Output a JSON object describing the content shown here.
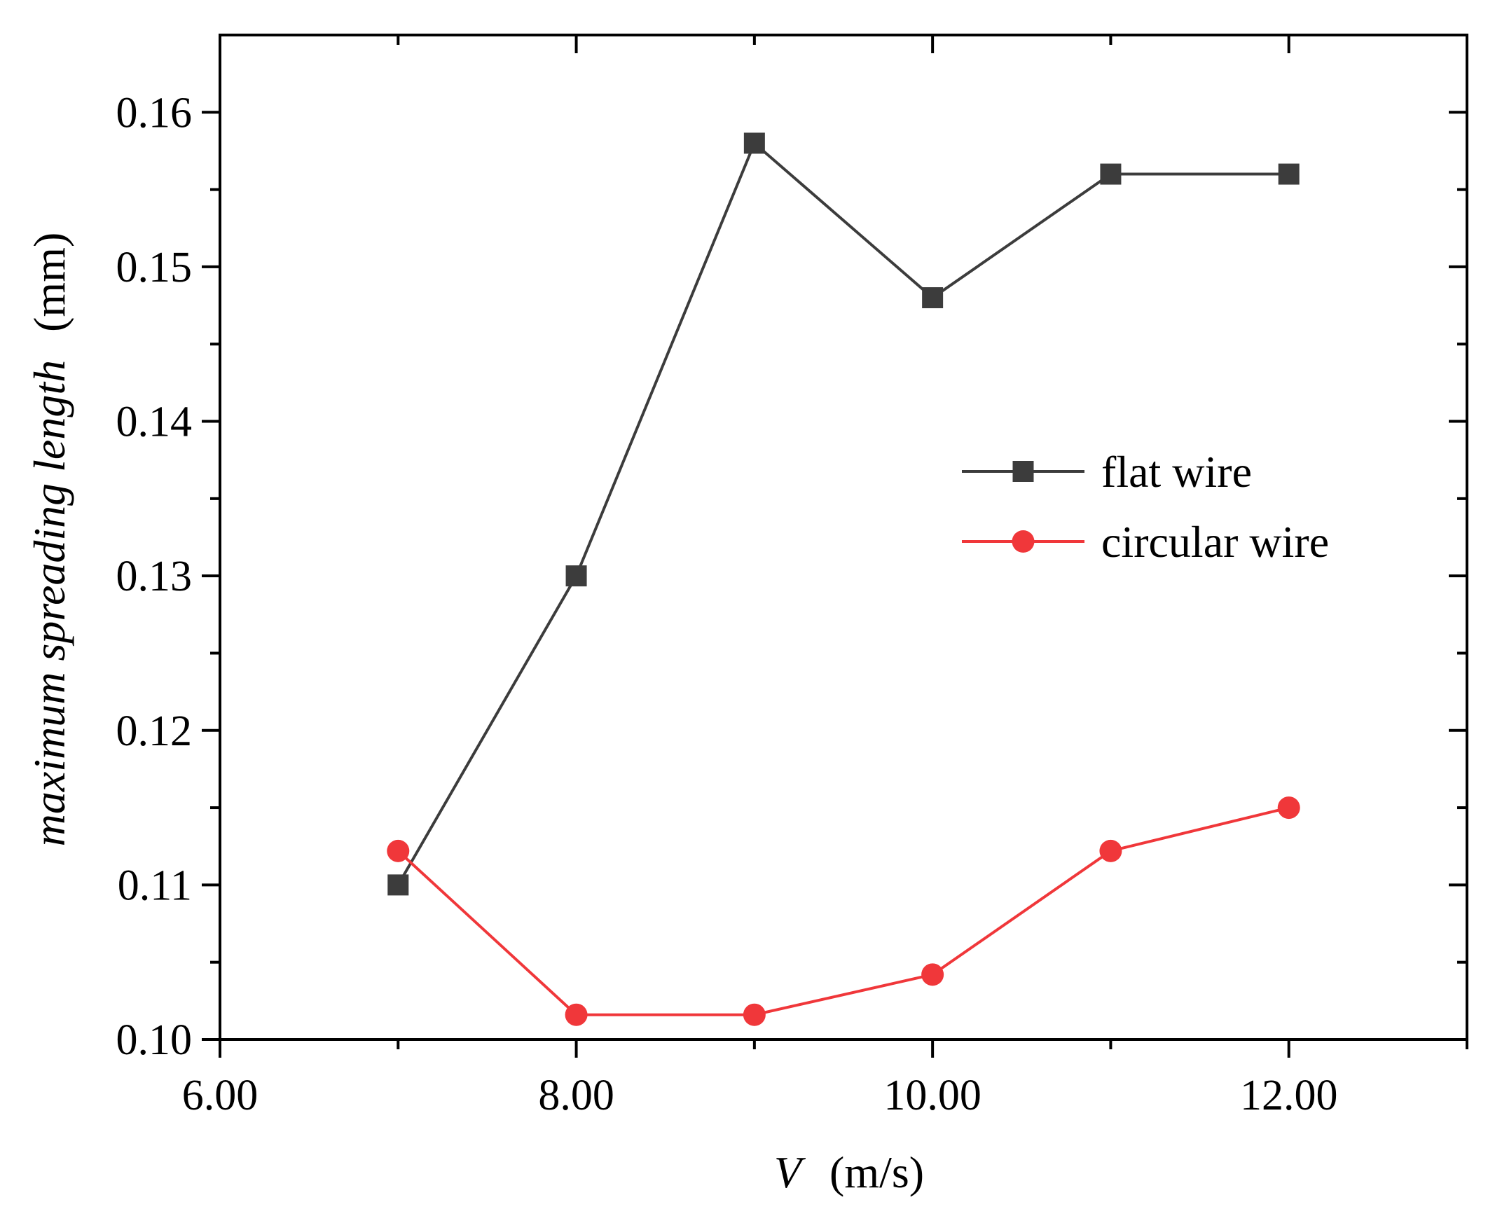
{
  "chart_data": {
    "type": "line",
    "title": "",
    "xlabel": {
      "var": "V",
      "units": "(m/s)"
    },
    "ylabel": {
      "var": "maximum spreading length",
      "units": "(mm)"
    },
    "xlim": [
      6.0,
      13.0
    ],
    "ylim": [
      0.1,
      0.165
    ],
    "xticks": [
      6,
      8,
      10,
      12
    ],
    "xtick_labels": [
      "6.00",
      "8.00",
      "10.00",
      "12.00"
    ],
    "xminor": [
      7,
      9,
      11,
      13
    ],
    "yticks": [
      0.1,
      0.11,
      0.12,
      0.13,
      0.14,
      0.15,
      0.16
    ],
    "ytick_labels": [
      "0.10",
      "0.11",
      "0.12",
      "0.13",
      "0.14",
      "0.15",
      "0.16"
    ],
    "yminor": [
      0.105,
      0.115,
      0.125,
      0.135,
      0.145,
      0.155
    ],
    "grid": false,
    "legend_position": "right",
    "series": [
      {
        "name": "flat wire",
        "color": "#3c3c3c",
        "marker": "square",
        "x": [
          7,
          8,
          9,
          10,
          11,
          12
        ],
        "y": [
          0.11,
          0.13,
          0.158,
          0.148,
          0.156,
          0.156
        ]
      },
      {
        "name": "circular wire",
        "color": "#f0373a",
        "marker": "circle",
        "x": [
          7,
          8,
          9,
          10,
          11,
          12
        ],
        "y": [
          0.1122,
          0.1016,
          0.1016,
          0.1042,
          0.1122,
          0.115
        ]
      }
    ]
  }
}
